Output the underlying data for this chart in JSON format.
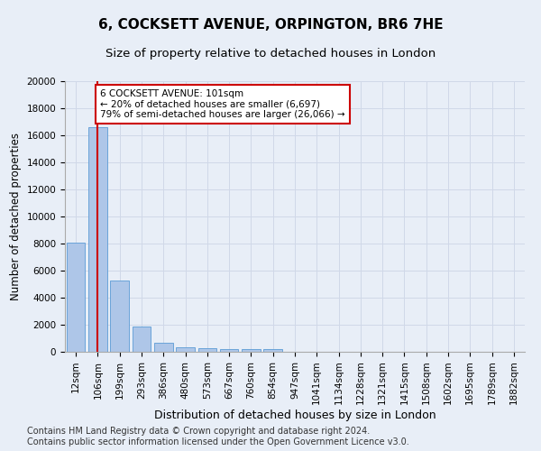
{
  "title1": "6, COCKSETT AVENUE, ORPINGTON, BR6 7HE",
  "title2": "Size of property relative to detached houses in London",
  "xlabel": "Distribution of detached houses by size in London",
  "ylabel": "Number of detached properties",
  "categories": [
    "12sqm",
    "106sqm",
    "199sqm",
    "293sqm",
    "386sqm",
    "480sqm",
    "573sqm",
    "667sqm",
    "760sqm",
    "854sqm",
    "947sqm",
    "1041sqm",
    "1134sqm",
    "1228sqm",
    "1321sqm",
    "1415sqm",
    "1508sqm",
    "1602sqm",
    "1695sqm",
    "1789sqm",
    "1882sqm"
  ],
  "bar_values": [
    8100,
    16600,
    5300,
    1850,
    700,
    350,
    270,
    220,
    180,
    170,
    0,
    0,
    0,
    0,
    0,
    0,
    0,
    0,
    0,
    0,
    0
  ],
  "bar_color": "#aec6e8",
  "bar_edge_color": "#5b9bd5",
  "annotation_text": "6 COCKSETT AVENUE: 101sqm\n← 20% of detached houses are smaller (6,697)\n79% of semi-detached houses are larger (26,066) →",
  "annotation_box_color": "#ffffff",
  "annotation_box_edge": "#cc0000",
  "vline_x": 1.0,
  "vline_color": "#cc0000",
  "ylim": [
    0,
    20000
  ],
  "yticks": [
    0,
    2000,
    4000,
    6000,
    8000,
    10000,
    12000,
    14000,
    16000,
    18000,
    20000
  ],
  "grid_color": "#d0d8e8",
  "bg_color": "#e8eef7",
  "footer": "Contains HM Land Registry data © Crown copyright and database right 2024.\nContains public sector information licensed under the Open Government Licence v3.0.",
  "title1_fontsize": 11,
  "title2_fontsize": 9.5,
  "xlabel_fontsize": 9,
  "ylabel_fontsize": 8.5,
  "tick_fontsize": 7.5,
  "footer_fontsize": 7.0,
  "annotation_fontsize": 7.5
}
